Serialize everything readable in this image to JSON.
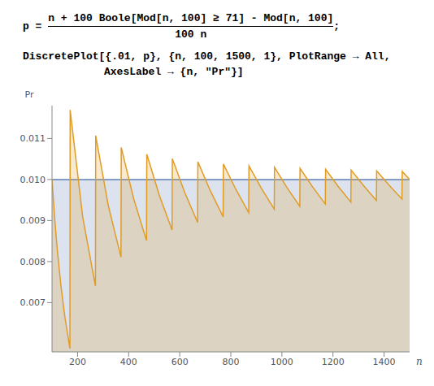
{
  "code": {
    "lhs": "p =",
    "numerator": "n + 100 Boole[Mod[n, 100] ≥ 71] - Mod[n, 100]",
    "denominator": "100 n",
    "suffix": ";",
    "lines": [
      "DiscretePlot[{.01, p}, {n, 100, 1500, 1}, PlotRange → All,",
      "AxesLabel → {n, \"Pr\"}]"
    ]
  },
  "chart_data": {
    "type": "area",
    "x_label": "n",
    "y_label": "Pr",
    "x": [
      100,
      110,
      120,
      135,
      150,
      170,
      171,
      220,
      270,
      271,
      320,
      370,
      371,
      420,
      470,
      471,
      520,
      570,
      571,
      620,
      670,
      671,
      720,
      770,
      771,
      820,
      870,
      871,
      920,
      970,
      971,
      1020,
      1070,
      1071,
      1120,
      1170,
      1171,
      1220,
      1270,
      1271,
      1320,
      1370,
      1371,
      1420,
      1470,
      1471,
      1500
    ],
    "series": [
      {
        "color": "#5e81b5",
        "values": [
          0.01,
          0.01,
          0.01,
          0.01,
          0.01,
          0.01,
          0.01,
          0.01,
          0.01,
          0.01,
          0.01,
          0.01,
          0.01,
          0.01,
          0.01,
          0.01,
          0.01,
          0.01,
          0.01,
          0.01,
          0.01,
          0.01,
          0.01,
          0.01,
          0.01,
          0.01,
          0.01,
          0.01,
          0.01,
          0.01,
          0.01,
          0.01,
          0.01,
          0.01,
          0.01,
          0.01,
          0.01,
          0.01,
          0.01,
          0.01,
          0.01,
          0.01,
          0.01,
          0.01,
          0.01,
          0.01,
          0.01
        ]
      },
      {
        "color": "#e19c24",
        "values": [
          0.01,
          0.009091,
          0.008333,
          0.007407,
          0.006667,
          0.005882,
          0.011696,
          0.009091,
          0.007407,
          0.01107,
          0.009375,
          0.008108,
          0.010782,
          0.009524,
          0.008511,
          0.010616,
          0.009615,
          0.008772,
          0.010508,
          0.009677,
          0.008955,
          0.010432,
          0.009722,
          0.009091,
          0.010376,
          0.009756,
          0.009195,
          0.010333,
          0.009783,
          0.009278,
          0.010299,
          0.009804,
          0.009346,
          0.010271,
          0.009821,
          0.009402,
          0.010248,
          0.009836,
          0.009449,
          0.010228,
          0.009848,
          0.009489,
          0.010211,
          0.009859,
          0.009524,
          0.010197,
          0.01
        ]
      }
    ],
    "xlim": [
      100,
      1500
    ],
    "xticks": [
      200,
      400,
      600,
      800,
      1000,
      1200,
      1400
    ],
    "ylim": [
      0.0058,
      0.0118
    ],
    "yticks": [
      0.007,
      0.008,
      0.009,
      {
        "value": 0.01,
        "label": "0.010"
      },
      0.011
    ]
  }
}
